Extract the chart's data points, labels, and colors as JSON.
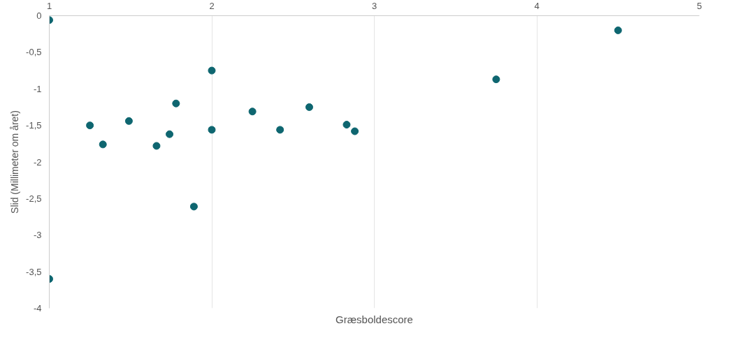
{
  "chart_data": {
    "type": "scatter",
    "xlabel": "Græsboldescore",
    "ylabel": "Slid (Millimeter om året)",
    "x": [
      1.0,
      1.0,
      1.25,
      1.33,
      1.49,
      1.66,
      1.74,
      1.78,
      1.89,
      2.0,
      2.0,
      2.25,
      2.42,
      2.6,
      2.83,
      2.88,
      3.75,
      4.5
    ],
    "series": [
      {
        "color": "#0e6670",
        "values": [
          -0.06,
          -3.6,
          -1.5,
          -1.76,
          -1.44,
          -1.78,
          -1.62,
          -1.2,
          -2.61,
          -0.75,
          -1.56,
          -1.31,
          -1.56,
          -1.25,
          -1.49,
          -1.58,
          -0.87,
          -0.2
        ]
      }
    ],
    "xlim": [
      1,
      5
    ],
    "xticks": [
      1,
      2,
      3,
      4,
      5
    ],
    "ylim": [
      -4,
      0
    ],
    "yticks": [
      {
        "value": 0,
        "label": "0"
      },
      {
        "value": -0.5,
        "label": "-0,5"
      },
      {
        "value": -1,
        "label": "-1"
      },
      {
        "value": -1.5,
        "label": "-1,5"
      },
      {
        "value": -2,
        "label": "-2"
      },
      {
        "value": -2.5,
        "label": "-2,5"
      },
      {
        "value": -3,
        "label": "-3"
      },
      {
        "value": -3.5,
        "label": "-3,5"
      },
      {
        "value": -4,
        "label": "-4"
      }
    ],
    "grid": "x",
    "marker": "circle"
  }
}
